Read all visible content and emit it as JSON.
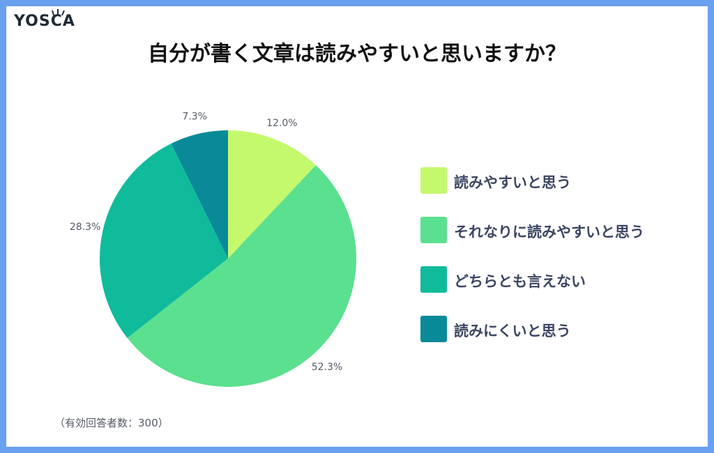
{
  "logo": {
    "text": "YOSCA",
    "icon": "logo-mark-icon"
  },
  "chart_data": {
    "type": "pie",
    "title": "自分が書く文章は読みやすいと思いますか？",
    "categories": [
      "読みやすいと思う",
      "それなりに読みやすいと思う",
      "どちらとも言えない",
      "読みにくいと思う"
    ],
    "values": [
      12.0,
      52.3,
      28.3,
      7.3
    ],
    "data_labels": [
      "12.0%",
      "52.3%",
      "28.3%",
      "7.3%"
    ],
    "colors": [
      "#c4f96e",
      "#5be08f",
      "#0fbb9b",
      "#0a8a99"
    ],
    "legend_position": "right",
    "start_angle": "12 o'clock",
    "direction": "clockwise"
  },
  "note": "（有効回答者数：300）"
}
